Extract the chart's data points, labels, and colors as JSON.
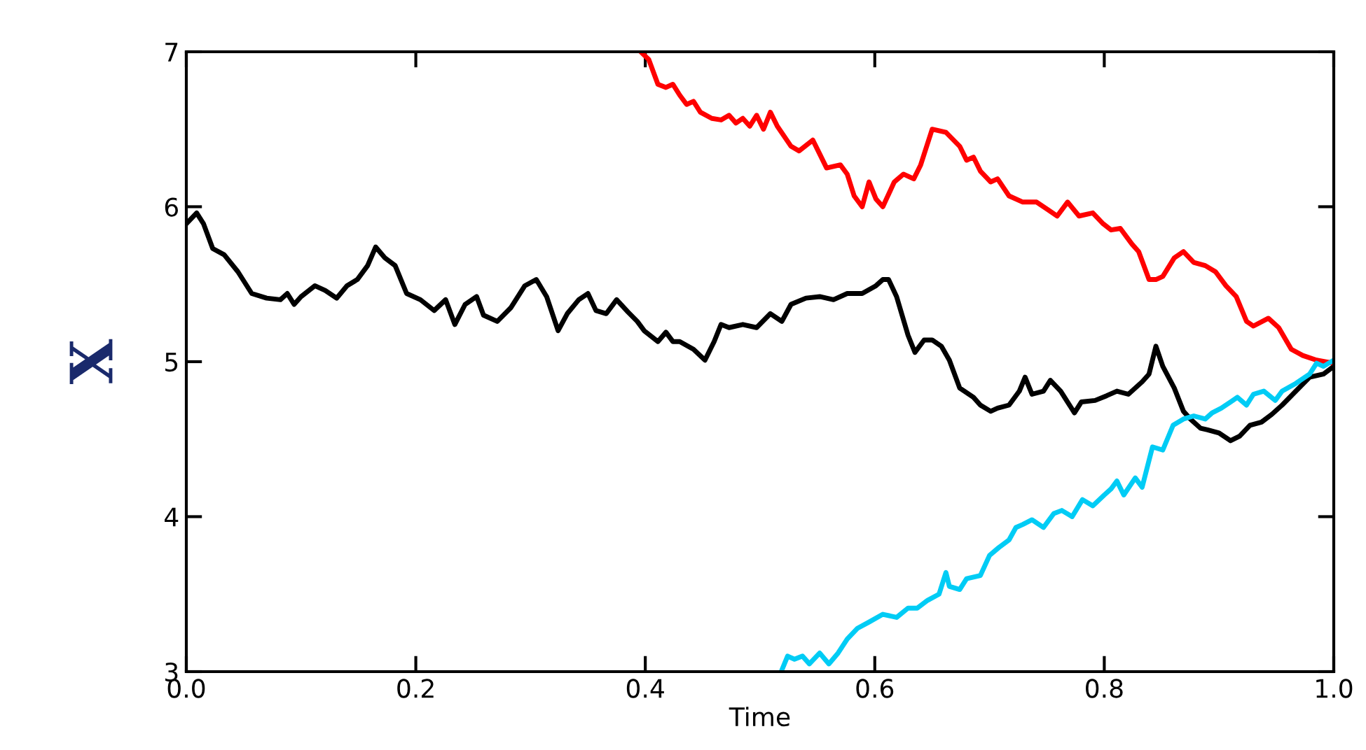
{
  "chart_data": {
    "type": "line",
    "xlabel": "Time",
    "ylabel": "X",
    "xlim": [
      0,
      1
    ],
    "ylim": [
      3,
      7
    ],
    "xticks": [
      {
        "value": 0,
        "label": "0.0"
      },
      {
        "value": 0.2,
        "label": "0.2"
      },
      {
        "value": 0.4,
        "label": "0.4"
      },
      {
        "value": 0.6,
        "label": "0.6"
      },
      {
        "value": 0.8,
        "label": "0.8"
      },
      {
        "value": 1,
        "label": "1.0"
      }
    ],
    "yticks": [
      3,
      4,
      5,
      6,
      7
    ],
    "grid": false,
    "marker": "none",
    "line_style": "solid",
    "series": [
      {
        "color": "#000000",
        "x": [
          0.0,
          0.009,
          0.015,
          0.023,
          0.033,
          0.045,
          0.057,
          0.07,
          0.082,
          0.088,
          0.094,
          0.1,
          0.112,
          0.121,
          0.131,
          0.14,
          0.149,
          0.158,
          0.165,
          0.173,
          0.182,
          0.192,
          0.204,
          0.216,
          0.226,
          0.234,
          0.243,
          0.253,
          0.259,
          0.271,
          0.283,
          0.295,
          0.305,
          0.314,
          0.324,
          0.332,
          0.342,
          0.35,
          0.357,
          0.366,
          0.375,
          0.385,
          0.393,
          0.399,
          0.411,
          0.418,
          0.424,
          0.43,
          0.442,
          0.452,
          0.46,
          0.466,
          0.473,
          0.485,
          0.497,
          0.509,
          0.519,
          0.527,
          0.54,
          0.552,
          0.564,
          0.576,
          0.589,
          0.601,
          0.607,
          0.612,
          0.619,
          0.629,
          0.635,
          0.643,
          0.65,
          0.658,
          0.665,
          0.674,
          0.686,
          0.692,
          0.701,
          0.707,
          0.717,
          0.726,
          0.731,
          0.737,
          0.747,
          0.753,
          0.762,
          0.768,
          0.774,
          0.78,
          0.792,
          0.802,
          0.811,
          0.821,
          0.833,
          0.839,
          0.845,
          0.851,
          0.861,
          0.869,
          0.875,
          0.884,
          0.89,
          0.9,
          0.91,
          0.918,
          0.927,
          0.937,
          0.946,
          0.955,
          0.967,
          0.979,
          0.991,
          1.0
        ],
        "values": [
          5.89,
          5.96,
          5.89,
          5.73,
          5.69,
          5.58,
          5.44,
          5.41,
          5.4,
          5.44,
          5.37,
          5.42,
          5.49,
          5.46,
          5.41,
          5.49,
          5.53,
          5.62,
          5.74,
          5.67,
          5.62,
          5.44,
          5.4,
          5.33,
          5.4,
          5.24,
          5.37,
          5.42,
          5.3,
          5.26,
          5.35,
          5.49,
          5.53,
          5.42,
          5.2,
          5.31,
          5.4,
          5.44,
          5.33,
          5.31,
          5.4,
          5.32,
          5.26,
          5.2,
          5.13,
          5.19,
          5.13,
          5.13,
          5.08,
          5.01,
          5.13,
          5.24,
          5.22,
          5.24,
          5.22,
          5.31,
          5.26,
          5.37,
          5.41,
          5.42,
          5.4,
          5.44,
          5.44,
          5.49,
          5.53,
          5.53,
          5.42,
          5.17,
          5.06,
          5.14,
          5.14,
          5.1,
          5.01,
          4.83,
          4.77,
          4.72,
          4.68,
          4.7,
          4.72,
          4.81,
          4.9,
          4.79,
          4.81,
          4.88,
          4.81,
          4.74,
          4.67,
          4.74,
          4.75,
          4.78,
          4.81,
          4.79,
          4.87,
          4.92,
          5.1,
          4.97,
          4.83,
          4.68,
          4.63,
          4.57,
          4.56,
          4.54,
          4.49,
          4.52,
          4.59,
          4.61,
          4.66,
          4.72,
          4.81,
          4.9,
          4.92,
          4.97
        ]
      },
      {
        "color": "#ff0000",
        "x": [
          0.396,
          0.403,
          0.411,
          0.418,
          0.424,
          0.43,
          0.436,
          0.442,
          0.448,
          0.458,
          0.466,
          0.473,
          0.479,
          0.485,
          0.491,
          0.497,
          0.503,
          0.509,
          0.515,
          0.527,
          0.534,
          0.546,
          0.552,
          0.558,
          0.57,
          0.576,
          0.582,
          0.589,
          0.595,
          0.601,
          0.607,
          0.617,
          0.625,
          0.634,
          0.64,
          0.65,
          0.662,
          0.674,
          0.68,
          0.686,
          0.692,
          0.701,
          0.707,
          0.717,
          0.729,
          0.741,
          0.751,
          0.759,
          0.768,
          0.778,
          0.79,
          0.799,
          0.806,
          0.814,
          0.824,
          0.83,
          0.839,
          0.845,
          0.851,
          0.861,
          0.869,
          0.878,
          0.888,
          0.897,
          0.906,
          0.915,
          0.924,
          0.93,
          0.943,
          0.952,
          0.963,
          0.973,
          0.985,
          1.0
        ],
        "values": [
          7.0,
          6.95,
          6.79,
          6.77,
          6.79,
          6.72,
          6.66,
          6.68,
          6.61,
          6.57,
          6.56,
          6.59,
          6.54,
          6.57,
          6.52,
          6.59,
          6.5,
          6.61,
          6.52,
          6.39,
          6.36,
          6.43,
          6.34,
          6.25,
          6.27,
          6.21,
          6.07,
          6.0,
          6.16,
          6.05,
          6.0,
          6.16,
          6.21,
          6.18,
          6.27,
          6.5,
          6.48,
          6.39,
          6.3,
          6.32,
          6.23,
          6.16,
          6.18,
          6.07,
          6.03,
          6.03,
          5.98,
          5.94,
          6.03,
          5.94,
          5.96,
          5.89,
          5.85,
          5.86,
          5.76,
          5.71,
          5.53,
          5.53,
          5.55,
          5.67,
          5.71,
          5.64,
          5.62,
          5.58,
          5.49,
          5.42,
          5.26,
          5.23,
          5.28,
          5.22,
          5.08,
          5.04,
          5.01,
          4.99
        ]
      },
      {
        "color": "#00ccf5",
        "x": [
          0.519,
          0.524,
          0.53,
          0.537,
          0.543,
          0.552,
          0.56,
          0.568,
          0.576,
          0.585,
          0.595,
          0.607,
          0.619,
          0.629,
          0.637,
          0.646,
          0.656,
          0.662,
          0.665,
          0.674,
          0.68,
          0.692,
          0.7,
          0.708,
          0.717,
          0.723,
          0.729,
          0.737,
          0.747,
          0.756,
          0.763,
          0.772,
          0.781,
          0.79,
          0.8,
          0.806,
          0.811,
          0.817,
          0.827,
          0.833,
          0.842,
          0.851,
          0.86,
          0.869,
          0.878,
          0.888,
          0.894,
          0.902,
          0.91,
          0.916,
          0.924,
          0.93,
          0.939,
          0.949,
          0.955,
          0.967,
          0.979,
          0.985,
          0.991,
          1.0
        ],
        "values": [
          3.01,
          3.1,
          3.08,
          3.1,
          3.05,
          3.12,
          3.05,
          3.12,
          3.21,
          3.28,
          3.32,
          3.37,
          3.35,
          3.41,
          3.41,
          3.46,
          3.5,
          3.64,
          3.55,
          3.53,
          3.6,
          3.62,
          3.75,
          3.8,
          3.85,
          3.93,
          3.95,
          3.98,
          3.93,
          4.02,
          4.04,
          4.0,
          4.11,
          4.07,
          4.14,
          4.18,
          4.23,
          4.14,
          4.25,
          4.19,
          4.45,
          4.43,
          4.59,
          4.63,
          4.65,
          4.63,
          4.67,
          4.7,
          4.74,
          4.77,
          4.72,
          4.79,
          4.81,
          4.75,
          4.81,
          4.86,
          4.92,
          4.99,
          4.97,
          5.01
        ]
      }
    ]
  }
}
